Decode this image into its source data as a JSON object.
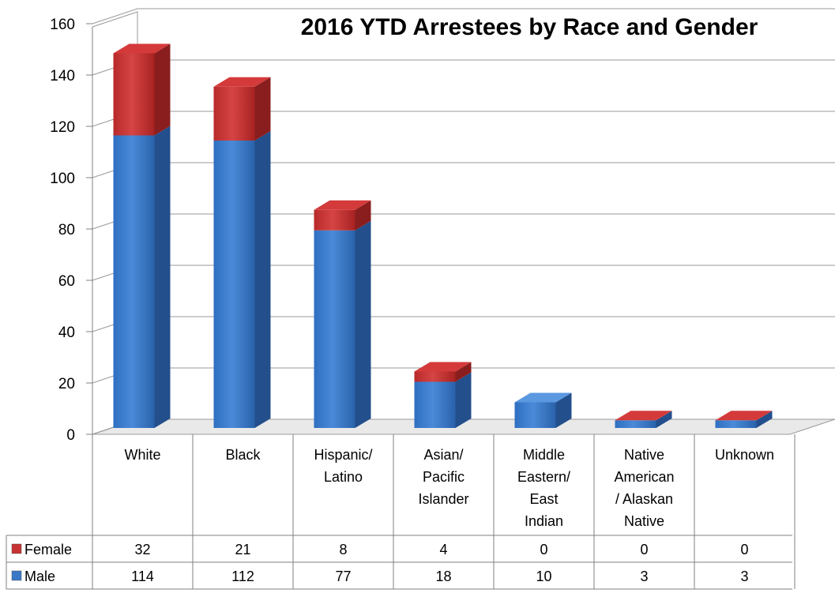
{
  "chart_data": {
    "type": "bar",
    "stacked": true,
    "three_d": true,
    "title": "2016 YTD Arrestees by Race and Gender",
    "categories": [
      [
        "White"
      ],
      [
        "Black"
      ],
      [
        "Hispanic/",
        "Latino"
      ],
      [
        "Asian/",
        "Pacific",
        "Islander"
      ],
      [
        "Middle",
        "Eastern/",
        "East",
        "Indian"
      ],
      [
        "Native",
        "American",
        "/ Alaskan",
        "Native"
      ],
      [
        "Unknown"
      ]
    ],
    "series": [
      {
        "name": "Male",
        "values": [
          114,
          112,
          77,
          18,
          10,
          3,
          3
        ],
        "color": "#3a78c8"
      },
      {
        "name": "Female",
        "values": [
          32,
          21,
          8,
          4,
          0,
          0,
          0
        ],
        "color": "#c83232"
      }
    ],
    "table_rows": [
      "Female",
      "Male"
    ],
    "ylim": [
      0,
      160
    ],
    "yticks": [
      0,
      20,
      40,
      60,
      80,
      100,
      120,
      140,
      160
    ],
    "grid": true,
    "legend": "data-table"
  }
}
